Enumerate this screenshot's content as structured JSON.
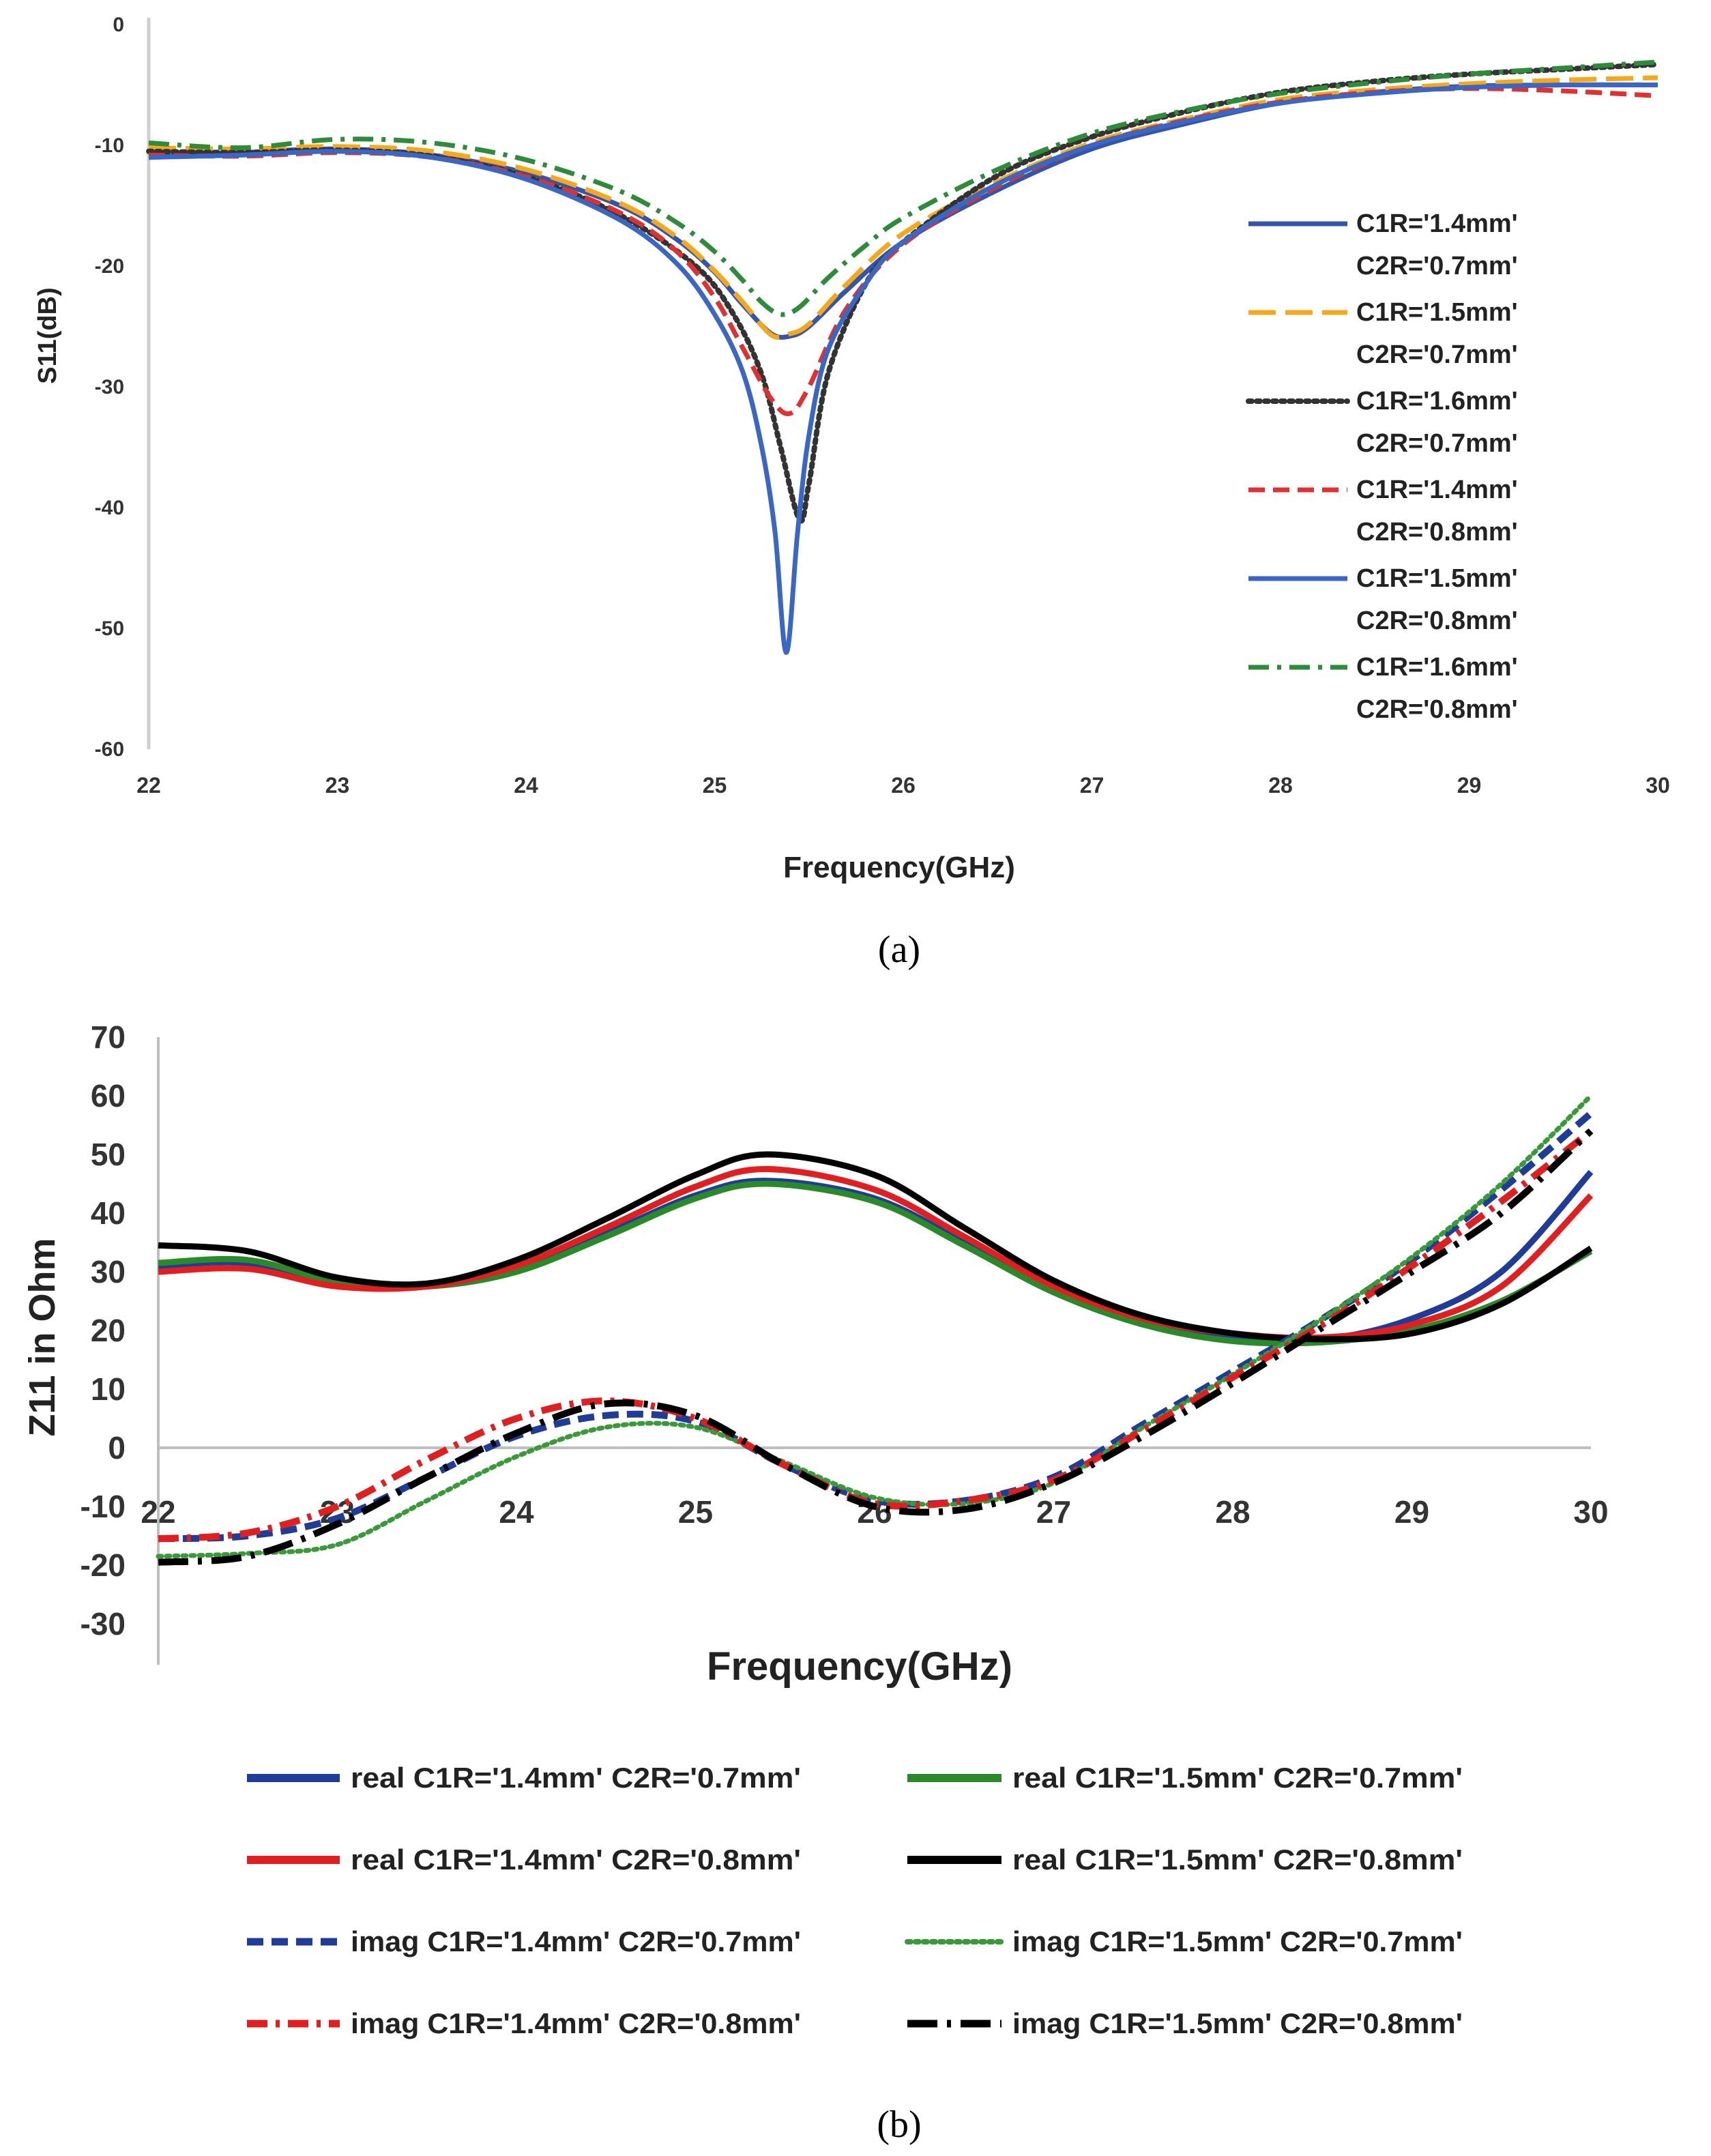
{
  "chart_data": [
    {
      "type": "line",
      "panel_label": "(a)",
      "title": "",
      "xlabel": "Frequency(GHz)",
      "ylabel": "S11(dB)",
      "xlim": [
        22,
        30
      ],
      "ylim": [
        -60,
        0
      ],
      "xticks": [
        22,
        23,
        24,
        25,
        26,
        27,
        28,
        29,
        30
      ],
      "yticks": [
        0,
        -10,
        -20,
        -30,
        -40,
        -50,
        -60
      ],
      "grid": false,
      "legend_position": "right",
      "series": [
        {
          "name": "C1R='1.4mm'",
          "name2": "C2R='0.7mm'",
          "color": "#3355aa",
          "dash": "solid",
          "x": [
            22,
            22.5,
            23,
            23.5,
            24,
            24.5,
            24.8,
            25.0,
            25.15,
            25.3,
            25.4,
            25.5,
            25.7,
            26.0,
            26.5,
            27,
            27.5,
            28,
            28.5,
            29,
            29.5,
            30
          ],
          "y": [
            -11,
            -10.6,
            -10.3,
            -10.8,
            -12.3,
            -15.0,
            -17.8,
            -20.5,
            -23.2,
            -25.6,
            -25.8,
            -25.0,
            -22.0,
            -18.0,
            -13.7,
            -10.3,
            -8.2,
            -6.5,
            -5.6,
            -5.1,
            -5.0,
            -5.0
          ]
        },
        {
          "name": "C1R='1.5mm'",
          "name2": "C2R='0.7mm'",
          "color": "#f5a81c",
          "dash": "longdash",
          "x": [
            22,
            22.5,
            23,
            23.5,
            24,
            24.5,
            24.8,
            25.0,
            25.15,
            25.3,
            25.4,
            25.5,
            25.7,
            26.0,
            26.5,
            27,
            27.5,
            28,
            28.5,
            29,
            29.5,
            30
          ],
          "y": [
            -10.2,
            -10.3,
            -10.1,
            -10.5,
            -12.0,
            -14.8,
            -17.6,
            -20.4,
            -23.0,
            -25.7,
            -25.6,
            -24.8,
            -21.5,
            -17.3,
            -13.0,
            -9.8,
            -7.8,
            -6.2,
            -5.4,
            -4.9,
            -4.6,
            -4.4
          ]
        },
        {
          "name": "C1R='1.6mm'",
          "name2": "C2R='0.7mm'",
          "color": "#333333",
          "dash": "dotted",
          "x": [
            22,
            22.5,
            23,
            23.5,
            24,
            24.5,
            24.9,
            25.1,
            25.25,
            25.35,
            25.45,
            25.5,
            25.6,
            25.8,
            26.0,
            26.5,
            27,
            27.5,
            28,
            28.5,
            29,
            29.5,
            30
          ],
          "y": [
            -10.5,
            -10.6,
            -10.4,
            -10.9,
            -12.6,
            -15.8,
            -20.0,
            -24.0,
            -29.0,
            -35.0,
            -41.0,
            -38.0,
            -29.0,
            -21.5,
            -18.0,
            -12.5,
            -9.3,
            -7.2,
            -5.6,
            -4.7,
            -4.1,
            -3.7,
            -3.3
          ]
        },
        {
          "name": "C1R='1.4mm'",
          "name2": "C2R='0.8mm'",
          "color": "#e03030",
          "dash": "dashed",
          "x": [
            22,
            22.5,
            23,
            23.5,
            24,
            24.5,
            24.8,
            25.0,
            25.15,
            25.3,
            25.4,
            25.5,
            25.7,
            26.0,
            26.5,
            27,
            27.5,
            28,
            28.5,
            29,
            29.5,
            30
          ],
          "y": [
            -10.8,
            -10.9,
            -10.6,
            -11.0,
            -12.6,
            -15.6,
            -18.8,
            -22.6,
            -26.8,
            -31.0,
            -32.2,
            -30.0,
            -23.5,
            -18.2,
            -13.4,
            -10.0,
            -7.9,
            -6.4,
            -5.6,
            -5.3,
            -5.5,
            -5.9
          ]
        },
        {
          "name": "C1R='1.5mm'",
          "name2": "C2R='0.8mm'",
          "color": "#3a66c4",
          "dash": "solid",
          "x": [
            22,
            22.5,
            23,
            23.5,
            24,
            24.5,
            24.8,
            25.0,
            25.15,
            25.25,
            25.32,
            25.38,
            25.44,
            25.5,
            25.6,
            25.8,
            26.0,
            26.5,
            27,
            27.5,
            28,
            28.5,
            29,
            29.5,
            30
          ],
          "y": [
            -11,
            -10.8,
            -10.5,
            -11.0,
            -12.8,
            -16.2,
            -19.8,
            -24.0,
            -28.8,
            -35.0,
            -42.0,
            -52.0,
            -42.0,
            -34.0,
            -27.0,
            -21.5,
            -18.0,
            -13.2,
            -10.0,
            -8.0,
            -6.5,
            -5.7,
            -5.2,
            -5.0,
            -5.0
          ]
        },
        {
          "name": "C1R='1.6mm'",
          "name2": "C2R='0.8mm'",
          "color": "#2e8b3a",
          "dash": "dashdot",
          "x": [
            22,
            22.5,
            23,
            23.5,
            24,
            24.5,
            24.8,
            25.0,
            25.15,
            25.25,
            25.35,
            25.45,
            25.6,
            25.8,
            26.0,
            26.5,
            27,
            27.5,
            28,
            28.5,
            29,
            29.5,
            30
          ],
          "y": [
            -9.8,
            -10.2,
            -9.5,
            -9.8,
            -11.2,
            -13.8,
            -16.4,
            -18.8,
            -21.2,
            -23.0,
            -24.0,
            -23.4,
            -21.0,
            -18.3,
            -16.0,
            -12.0,
            -9.0,
            -7.1,
            -5.7,
            -4.8,
            -4.1,
            -3.6,
            -3.1
          ]
        }
      ]
    },
    {
      "type": "line",
      "panel_label": "(b)",
      "title": "",
      "xlabel": "Frequency(GHz)",
      "ylabel": "Z11 in Ohm",
      "xlim": [
        22,
        30
      ],
      "ylim": [
        -30,
        70
      ],
      "xticks": [
        22,
        23,
        24,
        25,
        26,
        27,
        28,
        29,
        30
      ],
      "yticks": [
        70,
        60,
        50,
        40,
        30,
        20,
        10,
        0,
        -10,
        -20,
        -30
      ],
      "grid": false,
      "legend_position": "bottom",
      "series": [
        {
          "name": "real C1R='1.4mm' C2R='0.7mm'",
          "color": "#1f3c99",
          "dash": "solid",
          "x": [
            22,
            22.5,
            23,
            23.5,
            24,
            24.5,
            25,
            25.4,
            26,
            26.5,
            27,
            27.5,
            28,
            28.5,
            29,
            29.5,
            30
          ],
          "y": [
            31,
            31.5,
            28,
            27.5,
            30.5,
            36.5,
            43.0,
            45.5,
            42.5,
            35.0,
            27.0,
            21.5,
            19.0,
            18.5,
            22.0,
            30.0,
            47.0
          ]
        },
        {
          "name": "real C1R='1.5mm' C2R='0.7mm'",
          "color": "#2a8a2a",
          "dash": "solid",
          "x": [
            22,
            22.5,
            23,
            23.5,
            24,
            24.5,
            25,
            25.4,
            26,
            26.5,
            27,
            27.5,
            28,
            28.5,
            29,
            29.5,
            30
          ],
          "y": [
            31.5,
            32.0,
            28.3,
            27.5,
            30.0,
            36.0,
            42.5,
            45.0,
            42.0,
            34.5,
            26.5,
            21.0,
            18.2,
            18.0,
            20.0,
            25.0,
            33.5
          ]
        },
        {
          "name": "real C1R='1.4mm' C2R='0.8mm'",
          "color": "#e02020",
          "dash": "solid",
          "x": [
            22,
            22.5,
            23,
            23.5,
            24,
            24.5,
            25,
            25.4,
            26,
            26.5,
            27,
            27.5,
            28,
            28.5,
            29,
            29.5,
            30
          ],
          "y": [
            30,
            30.5,
            27.5,
            27.5,
            31.0,
            37.5,
            44.5,
            47.5,
            44.0,
            36.0,
            27.5,
            22.0,
            19.5,
            18.8,
            21.0,
            27.5,
            43.0
          ]
        },
        {
          "name": "real C1R='1.5mm' C2R='0.8mm'",
          "color": "#000000",
          "dash": "solid",
          "x": [
            22,
            22.5,
            23,
            23.5,
            24,
            24.5,
            25,
            25.4,
            26,
            26.5,
            27,
            27.5,
            28,
            28.5,
            29,
            29.5,
            30
          ],
          "y": [
            34.5,
            33.5,
            29.0,
            28.0,
            32.0,
            39.0,
            46.5,
            50.0,
            46.5,
            37.5,
            28.5,
            22.5,
            19.5,
            18.5,
            19.5,
            24.5,
            34.0
          ]
        },
        {
          "name": "imag C1R='1.4mm' C2R='0.7mm'",
          "color": "#1f3c99",
          "dash": "dashed",
          "x": [
            22,
            22.5,
            23,
            23.5,
            24,
            24.5,
            25,
            25.5,
            26,
            26.5,
            27,
            27.5,
            28,
            28.5,
            29,
            29.5,
            30
          ],
          "y": [
            -15.5,
            -15.0,
            -12.0,
            -5.0,
            2.0,
            5.5,
            4.5,
            -3.0,
            -9.0,
            -9.0,
            -5.0,
            4.0,
            13.0,
            22.0,
            32.0,
            44.0,
            57.0
          ]
        },
        {
          "name": "imag C1R='1.5mm' C2R='0.7mm'",
          "color": "#3a9a3a",
          "dash": "dotted",
          "x": [
            22,
            22.5,
            23,
            23.5,
            24,
            24.5,
            25,
            25.5,
            26,
            26.5,
            27,
            27.5,
            28,
            28.5,
            29,
            29.5,
            30
          ],
          "y": [
            -18.5,
            -18.0,
            -16.5,
            -9.0,
            -1.5,
            3.5,
            3.5,
            -2.5,
            -8.5,
            -9.5,
            -6.0,
            3.5,
            12.5,
            22.0,
            32.5,
            45.0,
            60.0
          ]
        },
        {
          "name": "imag C1R='1.4mm' C2R='0.8mm'",
          "color": "#e02020",
          "dash": "dashdot",
          "x": [
            22,
            22.5,
            23,
            23.5,
            24,
            24.5,
            25,
            25.5,
            26,
            26.5,
            27,
            27.5,
            28,
            28.5,
            29,
            29.5,
            30
          ],
          "y": [
            -15.5,
            -14.5,
            -10.0,
            -2.0,
            5.0,
            8.0,
            5.0,
            -3.0,
            -9.5,
            -9.0,
            -5.5,
            3.0,
            12.0,
            21.0,
            31.0,
            42.0,
            54.0
          ]
        },
        {
          "name": "imag C1R='1.5mm' C2R='0.8mm'",
          "color": "#000000",
          "dash": "longdashdot",
          "x": [
            22,
            22.5,
            23,
            23.5,
            24,
            24.5,
            25,
            25.5,
            26,
            26.5,
            27,
            27.5,
            28,
            28.5,
            29,
            29.5,
            30
          ],
          "y": [
            -19.5,
            -18.5,
            -13.0,
            -5.0,
            2.5,
            7.5,
            5.5,
            -3.0,
            -10.0,
            -10.5,
            -6.0,
            2.0,
            11.0,
            20.5,
            30.0,
            40.0,
            54.0
          ]
        }
      ]
    }
  ]
}
